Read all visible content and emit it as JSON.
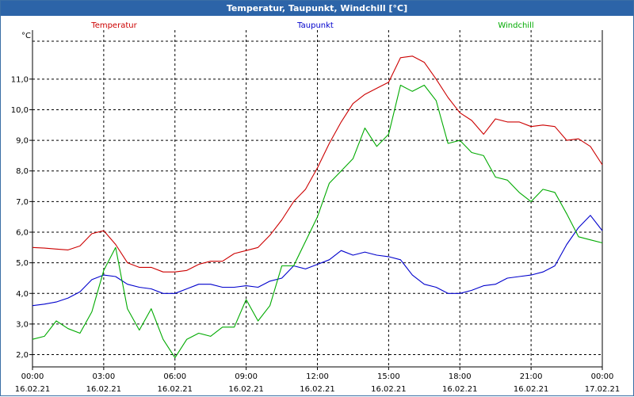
{
  "chart_data": {
    "type": "line",
    "title": "Temperatur, Taupunkt, Windchill [°C]",
    "ylabel": "°C",
    "xlabel": "",
    "ylim": [
      1.6,
      12.6
    ],
    "xlim": [
      0,
      24
    ],
    "yticks": [
      "2,0",
      "3,0",
      "4,0",
      "5,0",
      "6,0",
      "7,0",
      "8,0",
      "9,0",
      "10,0",
      "11,0"
    ],
    "ytick_values": [
      2,
      3,
      4,
      5,
      6,
      7,
      8,
      9,
      10,
      11
    ],
    "xticks": [
      {
        "h": 0,
        "time": "00:00",
        "date": "16.02.21"
      },
      {
        "h": 3,
        "time": "03:00",
        "date": "16.02.21"
      },
      {
        "h": 6,
        "time": "06:00",
        "date": "16.02.21"
      },
      {
        "h": 9,
        "time": "09:00",
        "date": "16.02.21"
      },
      {
        "h": 12,
        "time": "12:00",
        "date": "16.02.21"
      },
      {
        "h": 15,
        "time": "15:00",
        "date": "16.02.21"
      },
      {
        "h": 18,
        "time": "18:00",
        "date": "16.02.21"
      },
      {
        "h": 21,
        "time": "21:00",
        "date": "16.02.21"
      },
      {
        "h": 24,
        "time": "00:00",
        "date": "17.02.21"
      }
    ],
    "grid": true,
    "series": [
      {
        "name": "Temperatur",
        "color": "#cc0000",
        "x": [
          0,
          0.5,
          1,
          1.5,
          2,
          2.5,
          3,
          3.5,
          4,
          4.5,
          5,
          5.5,
          6,
          6.5,
          7,
          7.5,
          8,
          8.5,
          9,
          9.5,
          10,
          10.5,
          11,
          11.5,
          12,
          12.5,
          13,
          13.5,
          14,
          14.5,
          15,
          15.5,
          16,
          16.5,
          17,
          17.5,
          18,
          18.5,
          19,
          19.5,
          20,
          20.5,
          21,
          21.5,
          22,
          22.5,
          23,
          23.5,
          24
        ],
        "values": [
          5.5,
          5.48,
          5.45,
          5.42,
          5.55,
          5.95,
          6.05,
          5.6,
          5.0,
          4.85,
          4.85,
          4.7,
          4.7,
          4.75,
          4.95,
          5.05,
          5.05,
          5.3,
          5.4,
          5.5,
          5.9,
          6.4,
          7.0,
          7.4,
          8.1,
          8.9,
          9.6,
          10.2,
          10.5,
          10.7,
          10.9,
          11.7,
          11.75,
          11.55,
          11.0,
          10.4,
          9.9,
          9.65,
          9.2,
          9.7,
          9.6,
          9.6,
          9.45,
          9.5,
          9.45,
          9.0,
          9.05,
          8.8,
          8.2
        ]
      },
      {
        "name": "Taupunkt",
        "color": "#0000cc",
        "x": [
          0,
          0.5,
          1,
          1.5,
          2,
          2.5,
          3,
          3.5,
          4,
          4.5,
          5,
          5.5,
          6,
          6.5,
          7,
          7.5,
          8,
          8.5,
          9,
          9.5,
          10,
          10.5,
          11,
          11.5,
          12,
          12.5,
          13,
          13.5,
          14,
          14.5,
          15,
          15.5,
          16,
          16.5,
          17,
          17.5,
          18,
          18.5,
          19,
          19.5,
          20,
          20.5,
          21,
          21.5,
          22,
          22.5,
          23,
          23.5,
          24
        ],
        "values": [
          3.6,
          3.65,
          3.72,
          3.85,
          4.05,
          4.45,
          4.6,
          4.55,
          4.3,
          4.2,
          4.15,
          4.0,
          4.0,
          4.15,
          4.3,
          4.3,
          4.2,
          4.2,
          4.25,
          4.2,
          4.4,
          4.5,
          4.9,
          4.8,
          4.95,
          5.1,
          5.4,
          5.25,
          5.35,
          5.25,
          5.2,
          5.1,
          4.6,
          4.3,
          4.2,
          4.0,
          4.0,
          4.1,
          4.25,
          4.3,
          4.5,
          4.55,
          4.6,
          4.7,
          4.9,
          5.6,
          6.15,
          6.55,
          6.05
        ]
      },
      {
        "name": "Windchill",
        "color": "#00aa00",
        "x": [
          0,
          0.5,
          1,
          1.5,
          2,
          2.5,
          3,
          3.5,
          4,
          4.5,
          5,
          5.5,
          6,
          6.5,
          7,
          7.5,
          8,
          8.5,
          9,
          9.5,
          10,
          10.5,
          11,
          11.5,
          12,
          12.5,
          13,
          13.5,
          14,
          14.5,
          15,
          15.5,
          16,
          16.5,
          17,
          17.5,
          18,
          18.5,
          19,
          19.5,
          20,
          20.5,
          21,
          21.5,
          22,
          22.5,
          23,
          23.5,
          24
        ],
        "values": [
          2.5,
          2.6,
          3.1,
          2.85,
          2.7,
          3.4,
          4.75,
          5.5,
          3.5,
          2.8,
          3.5,
          2.5,
          1.9,
          2.5,
          2.7,
          2.6,
          2.9,
          2.9,
          3.8,
          3.1,
          3.6,
          4.9,
          4.9,
          5.7,
          6.5,
          7.6,
          8.0,
          8.4,
          9.4,
          8.8,
          9.2,
          10.8,
          10.6,
          10.8,
          10.3,
          8.9,
          9.0,
          8.6,
          8.5,
          7.8,
          7.7,
          7.3,
          7.0,
          7.4,
          7.3,
          6.6,
          5.85,
          5.75,
          5.65
        ]
      }
    ]
  }
}
